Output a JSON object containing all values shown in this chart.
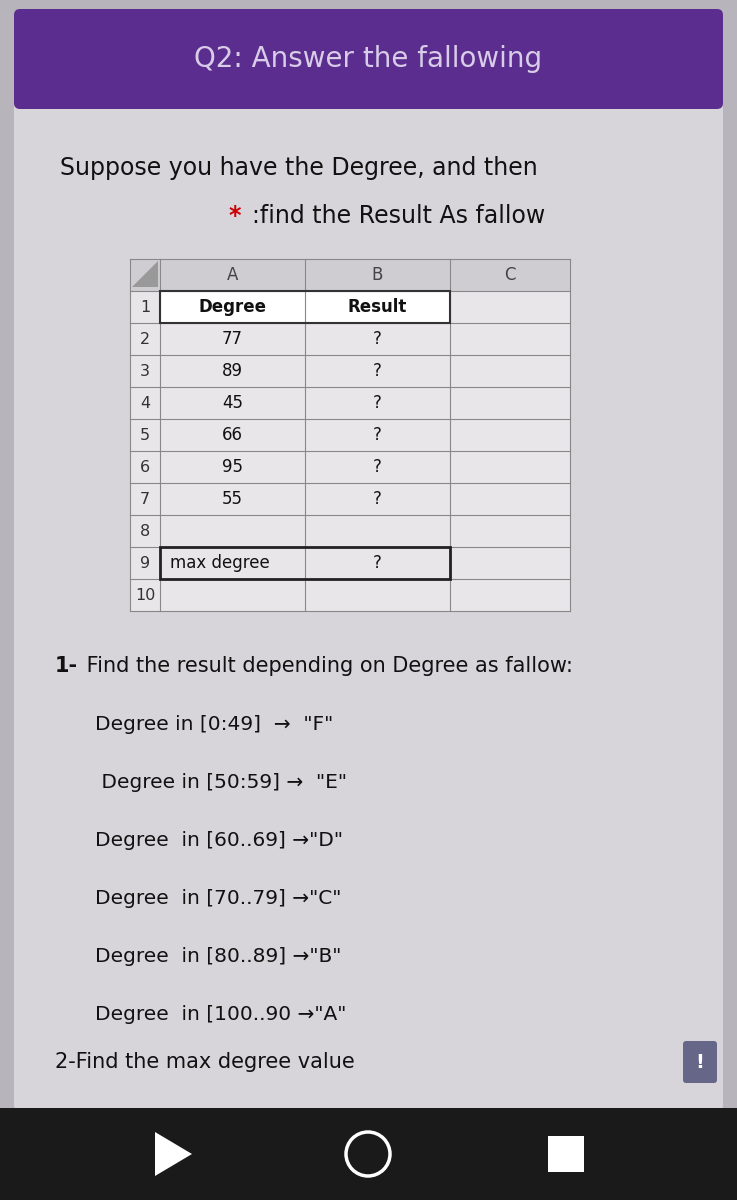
{
  "title": "Q2: Answer the fallowing",
  "title_bg": "#5b2d8e",
  "title_color": "#d8cce8",
  "bg_color": "#b8b4bc",
  "card_bg": "#d8d5da",
  "subtitle1": "Suppose you have the Degree, and then",
  "subtitle2_star": "* ",
  "subtitle2_rest": ":find the Result As fallow",
  "star_color": "#cc0000",
  "col_headers": [
    "A",
    "B",
    "C"
  ],
  "row_nums": [
    "1",
    "2",
    "3",
    "4",
    "5",
    "6",
    "7",
    "8",
    "9",
    "10"
  ],
  "col_a": [
    "Degree",
    "77",
    "89",
    "45",
    "66",
    "95",
    "55",
    "",
    "max degree",
    ""
  ],
  "col_b": [
    "Result",
    "?",
    "?",
    "?",
    "?",
    "?",
    "?",
    "",
    "?",
    ""
  ],
  "instructions_bold": "1-",
  "instructions_rest": " Find the result depending on Degree as fallow:",
  "grade_rules": [
    "Degree in [0:49]  →  \"F\"",
    " Degree in [50:59] →  \"E\"",
    "Degree  in [60..69] →\"D\"",
    "Degree  in [70..79] →\"C\"",
    "Degree  in [80..89] →\"B\"",
    "Degree  in [100..90 →\"A\""
  ],
  "footer": "2-Find the max degree value",
  "bottom_bar_color": "#1a1a1a"
}
